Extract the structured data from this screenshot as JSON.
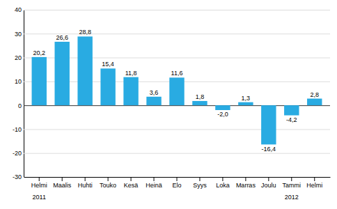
{
  "chart_data": {
    "type": "bar",
    "categories": [
      "Helmi",
      "Maalis",
      "Huhti",
      "Touko",
      "Kesä",
      "Heinä",
      "Elo",
      "Syys",
      "Loka",
      "Marras",
      "Joulu",
      "Tammi",
      "Helmi"
    ],
    "values": [
      20.2,
      26.6,
      28.8,
      15.4,
      11.8,
      3.6,
      11.6,
      1.8,
      -2.0,
      1.3,
      -16.4,
      -4.2,
      2.8
    ],
    "value_labels": [
      "20,2",
      "26,6",
      "28,8",
      "15,4",
      "11,8",
      "3,6",
      "11,6",
      "1,8",
      "-2,0",
      "1,3",
      "-16,4",
      "-4,2",
      "2,8"
    ],
    "data_labels": true,
    "color": "#29abe2",
    "ylim": [
      -30,
      40
    ],
    "yticks": [
      -30,
      -20,
      -10,
      0,
      10,
      20,
      30,
      40
    ],
    "grid": true,
    "annotations": [
      {
        "text": "2011",
        "x": 0
      },
      {
        "text": "2012",
        "x": 11
      }
    ]
  }
}
